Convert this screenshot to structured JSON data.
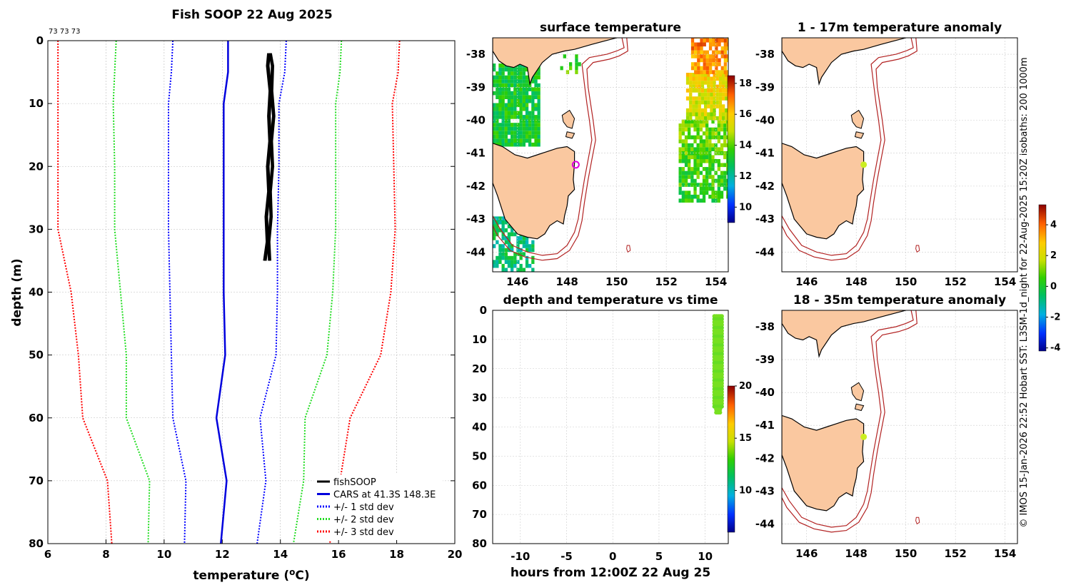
{
  "colors": {
    "land": "#fac8a0",
    "isobath": "#b22222",
    "fish": "#000000",
    "cars": "#0000dd",
    "sd1": "#0000ff",
    "sd2": "#22dd22",
    "sd3": "#ff0000",
    "marker": "#dd00dd",
    "point": "#ccee22"
  },
  "chart_data": [
    {
      "id": "profile",
      "type": "line",
      "title": "Fish SOOP 22 Aug 2025",
      "top_note": "73 73 73",
      "xlabel_main": "temperature (",
      "xlabel_sup": "o",
      "xlabel_end": "C)",
      "ylabel": "depth (m)",
      "xlim": [
        6,
        20
      ],
      "ylim": [
        0,
        80
      ],
      "xticks": [
        "6",
        "8",
        "10",
        "12",
        "14",
        "16",
        "18",
        "20"
      ],
      "yticks": [
        "0",
        "10",
        "20",
        "30",
        "40",
        "50",
        "60",
        "70",
        "80"
      ],
      "depth": [
        0,
        5,
        10,
        20,
        30,
        40,
        50,
        60,
        70,
        80
      ],
      "series": [
        {
          "name": "CARS at 41.3S 148.3E",
          "values": [
            12.2,
            12.2,
            12.05,
            12.05,
            12.05,
            12.05,
            12.1,
            11.8,
            12.15,
            11.95
          ]
        },
        {
          "name": "cars_m1",
          "values": [
            10.3,
            10.25,
            10.15,
            10.15,
            10.15,
            10.2,
            10.25,
            10.3,
            10.75,
            10.7
          ]
        },
        {
          "name": "cars_p1",
          "values": [
            14.2,
            14.15,
            13.95,
            13.95,
            13.9,
            13.9,
            13.85,
            13.3,
            13.5,
            13.2
          ]
        },
        {
          "name": "cars_m2",
          "values": [
            8.35,
            8.3,
            8.25,
            8.3,
            8.3,
            8.5,
            8.7,
            8.7,
            9.5,
            9.45
          ]
        },
        {
          "name": "cars_p2",
          "values": [
            16.1,
            16.05,
            15.9,
            15.9,
            15.9,
            15.8,
            15.6,
            14.85,
            14.8,
            14.45
          ]
        },
        {
          "name": "cars_m3",
          "values": [
            6.35,
            6.35,
            6.35,
            6.35,
            6.35,
            6.8,
            7.05,
            7.2,
            8.05,
            8.2
          ]
        },
        {
          "name": "cars_p3",
          "values": [
            18.1,
            18.05,
            17.85,
            17.9,
            17.95,
            17.8,
            17.45,
            16.4,
            16.05,
            15.7
          ]
        }
      ],
      "fish_profile": {
        "depth": [
          2,
          4,
          8,
          12,
          16,
          20,
          24,
          28,
          32,
          35
        ],
        "temperature": [
          13.6,
          13.62,
          13.65,
          13.66,
          13.64,
          13.62,
          13.6,
          13.57,
          13.55,
          13.52
        ]
      },
      "legend": [
        "fishSOOP",
        "CARS at 41.3S 148.3E",
        "+/- 1 std dev",
        "+/- 2 std dev",
        "+/- 3 std dev"
      ]
    },
    {
      "id": "surface",
      "type": "heatmap",
      "title": "surface temperature",
      "xlim": [
        145,
        154.5
      ],
      "ylim": [
        -44.6,
        -37.5
      ],
      "xticks": [
        "146",
        "148",
        "150",
        "152",
        "154"
      ],
      "yticks": [
        "-38",
        "-39",
        "-40",
        "-41",
        "-42",
        "-43",
        "-44"
      ],
      "colorbar_ticks": [
        "18",
        "16",
        "14",
        "12",
        "10"
      ],
      "colorbar_range": [
        9,
        18.5
      ],
      "vessel_position": {
        "lon": 148.35,
        "lat": -41.35
      }
    },
    {
      "id": "anom1",
      "type": "heatmap",
      "title": "1 - 17m temperature anomaly",
      "xticks": [
        "146",
        "148",
        "150",
        "152",
        "154"
      ],
      "yticks": [
        "-38",
        "-39",
        "-40",
        "-41",
        "-42",
        "-43",
        "-44"
      ],
      "point": {
        "lon": 148.3,
        "lat": -41.35
      }
    },
    {
      "id": "anom2",
      "type": "heatmap",
      "title": "18 - 35m temperature anomaly",
      "xticks": [
        "146",
        "148",
        "150",
        "152",
        "154"
      ],
      "yticks": [
        "-38",
        "-39",
        "-40",
        "-41",
        "-42",
        "-43",
        "-44"
      ],
      "point": {
        "lon": 148.3,
        "lat": -41.35
      }
    },
    {
      "id": "timeplot",
      "type": "scatter",
      "title": "depth and temperature vs time",
      "xlabel": "hours from 12:00Z 22 Aug 25",
      "xlim": [
        -13,
        12.5
      ],
      "ylim": [
        0,
        80
      ],
      "xticks": [
        "-10",
        "-5",
        "0",
        "5",
        "10"
      ],
      "yticks": [
        "0",
        "10",
        "20",
        "30",
        "40",
        "50",
        "60",
        "70",
        "80"
      ],
      "colorbar_ticks": [
        "20",
        "15",
        "10"
      ],
      "colorbar_range": [
        6,
        20
      ],
      "hour_start": 11.0,
      "hour_end": 11.8,
      "depth_range": [
        2,
        35
      ]
    },
    {
      "id": "anom_colorbar",
      "type": "heatmap",
      "colorbar_ticks": [
        "4",
        "2",
        "0",
        "-2",
        "-4"
      ],
      "colorbar_range": [
        -4.2,
        5.3
      ]
    }
  ],
  "side_caption": "© IMOS 15-Jan-2026 22:52 Hobart SST: L3SM-1d_night for 22-Aug-2025 15:20Z isobaths: 200  1000m"
}
